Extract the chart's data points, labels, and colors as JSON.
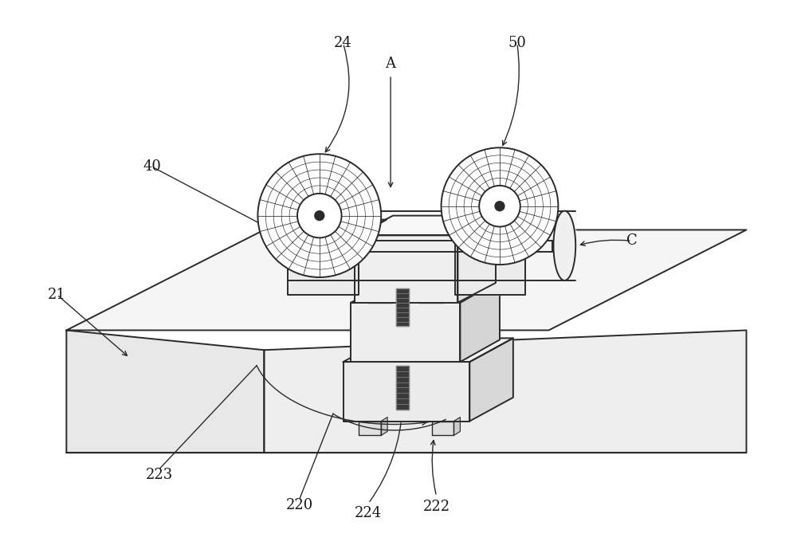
{
  "bg_color": "#ffffff",
  "line_color": "#2a2a2a",
  "figsize": [
    10.0,
    6.94
  ],
  "dpi": 100,
  "label_fontsize": 13
}
